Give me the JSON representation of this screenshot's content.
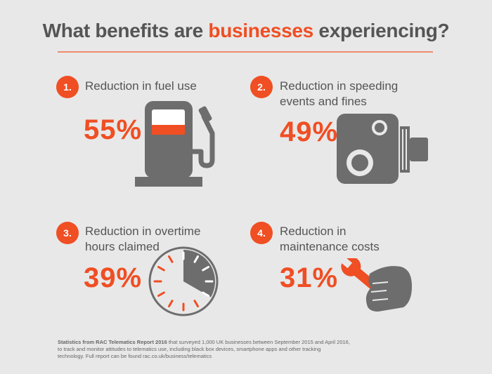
{
  "header": {
    "title_before": "What benefits are ",
    "title_highlight": "businesses",
    "title_after": " experiencing?"
  },
  "benefits": [
    {
      "number": "1.",
      "label_line1": "Reduction in fuel use",
      "label_line2": "",
      "percent": "55%",
      "icon": "fuel-pump-icon"
    },
    {
      "number": "2.",
      "label_line1": "Reduction in speeding",
      "label_line2": "events and fines",
      "percent": "49%",
      "icon": "speed-camera-icon"
    },
    {
      "number": "3.",
      "label_line1": "Reduction in overtime",
      "label_line2": "hours claimed",
      "percent": "39%",
      "icon": "clock-icon"
    },
    {
      "number": "4.",
      "label_line1": "Reduction in",
      "label_line2": "maintenance costs",
      "percent": "31%",
      "icon": "wrench-hand-icon"
    }
  ],
  "footnote": {
    "source_bold": "Statistics from RAC Telematics Report 2016",
    "line1_rest": " that surveyed 1,000 UK businesses between September 2015 and April 2016,",
    "line2": "to track and monitor attitudes to telematics use, including black box devices, smartphone apps and other tracking",
    "line3": "technology. Full report can be found rac.co.uk/business/telematics"
  },
  "colors": {
    "accent": "#f04e23",
    "icon_gray": "#6d6d6d",
    "background": "#e8e8e8"
  }
}
